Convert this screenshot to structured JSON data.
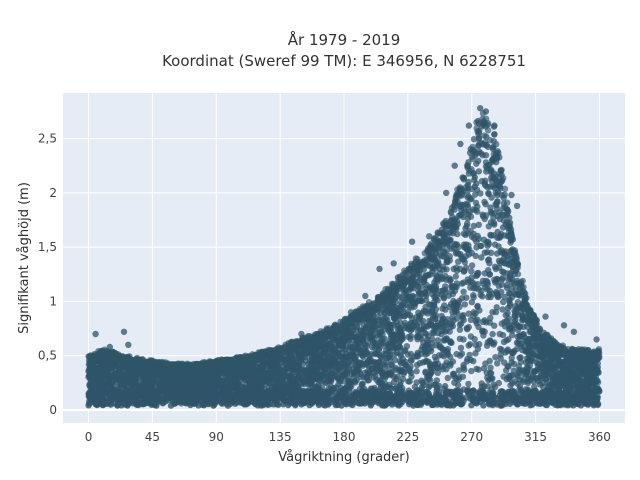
{
  "chart_data": {
    "type": "scatter",
    "title_lines": [
      "År 1979 - 2019",
      "Koordinat (Sweref 99 TM): E 346956, N 6228751"
    ],
    "xlabel": "Vågriktning (grader)",
    "ylabel": "Signifikant våghöjd (m)",
    "xlim": [
      -18,
      378
    ],
    "ylim": [
      -0.12,
      2.92
    ],
    "x_ticks": [
      0,
      45,
      90,
      135,
      180,
      225,
      270,
      315,
      360
    ],
    "x_tick_labels": [
      "0",
      "45",
      "90",
      "135",
      "180",
      "225",
      "270",
      "315",
      "360"
    ],
    "y_ticks": [
      0,
      0.5,
      1,
      1.5,
      2,
      2.5
    ],
    "y_tick_labels": [
      "0",
      "0,5",
      "1",
      "1,5",
      "2",
      "2,5"
    ],
    "grid": true,
    "plot_background": "#e5ecf6",
    "marker_color": "#2f5469",
    "envelope": {
      "x": [
        0,
        10,
        20,
        30,
        45,
        60,
        75,
        90,
        105,
        120,
        135,
        150,
        165,
        180,
        195,
        210,
        225,
        240,
        255,
        265,
        270,
        275,
        280,
        285,
        290,
        295,
        300,
        310,
        320,
        330,
        345,
        360
      ],
      "y_max": [
        0.5,
        0.55,
        0.52,
        0.48,
        0.45,
        0.42,
        0.42,
        0.45,
        0.48,
        0.52,
        0.58,
        0.65,
        0.72,
        0.82,
        0.95,
        1.1,
        1.3,
        1.5,
        1.8,
        2.2,
        2.5,
        2.7,
        2.72,
        2.6,
        2.3,
        1.9,
        1.5,
        0.95,
        0.72,
        0.6,
        0.55,
        0.55
      ]
    },
    "outliers": [
      {
        "x": 5,
        "y": 0.7
      },
      {
        "x": 25,
        "y": 0.72
      },
      {
        "x": 28,
        "y": 0.6
      },
      {
        "x": 15,
        "y": 0.58
      },
      {
        "x": 335,
        "y": 0.78
      },
      {
        "x": 342,
        "y": 0.72
      },
      {
        "x": 322,
        "y": 0.86
      },
      {
        "x": 312,
        "y": 0.85
      },
      {
        "x": 358,
        "y": 0.65
      },
      {
        "x": 228,
        "y": 1.55
      },
      {
        "x": 240,
        "y": 1.6
      },
      {
        "x": 252,
        "y": 2.0
      },
      {
        "x": 258,
        "y": 2.25
      },
      {
        "x": 262,
        "y": 2.45
      },
      {
        "x": 268,
        "y": 2.62
      },
      {
        "x": 276,
        "y": 2.78
      },
      {
        "x": 280,
        "y": 2.75
      },
      {
        "x": 286,
        "y": 2.62
      },
      {
        "x": 298,
        "y": 1.98
      },
      {
        "x": 302,
        "y": 1.88
      },
      {
        "x": 205,
        "y": 1.3
      },
      {
        "x": 215,
        "y": 1.35
      },
      {
        "x": 195,
        "y": 1.05
      },
      {
        "x": 218,
        "y": 1.22
      },
      {
        "x": 150,
        "y": 0.7
      },
      {
        "x": 185,
        "y": 0.9
      }
    ]
  }
}
